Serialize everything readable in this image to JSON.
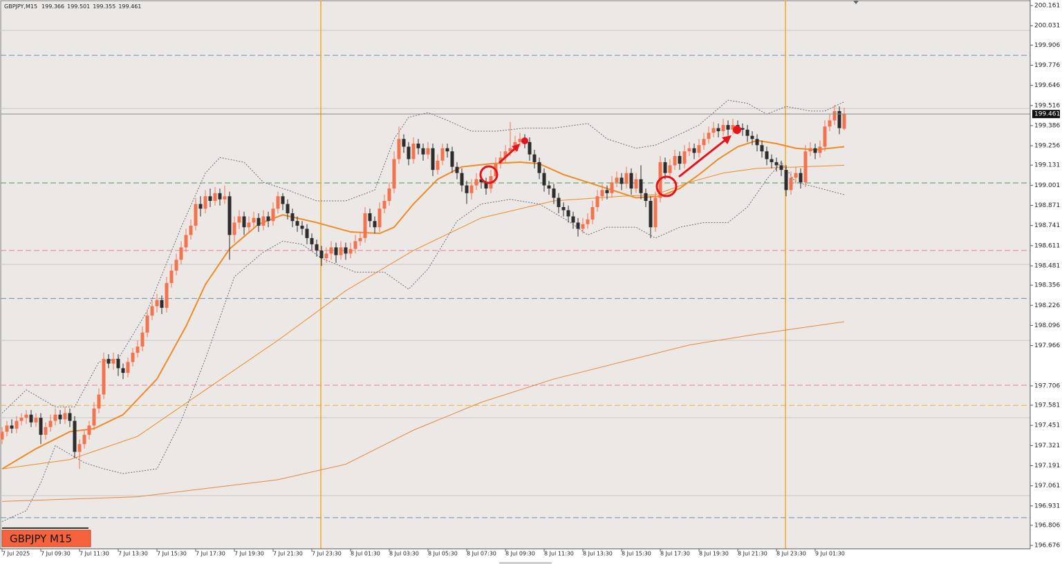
{
  "chart_data": {
    "type": "candlestick",
    "symbol": "GBPJPY,M15",
    "ohlc": [
      199.366,
      199.501,
      199.355,
      199.461
    ],
    "badge": "GBPJPY M15",
    "ylim": [
      196.654,
      200.197
    ],
    "yticks": [
      200.161,
      200.031,
      199.906,
      199.776,
      199.646,
      199.516,
      199.386,
      199.256,
      199.131,
      199.001,
      198.871,
      198.741,
      198.611,
      198.481,
      198.356,
      198.226,
      198.096,
      197.966,
      197.706,
      197.581,
      197.451,
      197.321,
      197.191,
      197.061,
      196.931,
      196.806,
      196.676
    ],
    "x_labels": [
      "7 Jul 2025",
      "7 Jul 09:30",
      "7 Jul 11:30",
      "7 Jul 13:30",
      "7 Jul 15:30",
      "7 Jul 17:30",
      "7 Jul 19:30",
      "7 Jul 21:30",
      "7 Jul 23:30",
      "8 Jul 01:30",
      "8 Jul 03:30",
      "8 Jul 05:30",
      "8 Jul 07:30",
      "8 Jul 09:30",
      "8 Jul 11:30",
      "8 Jul 13:30",
      "8 Jul 15:30",
      "8 Jul 17:30",
      "8 Jul 19:30",
      "8 Jul 21:30",
      "8 Jul 23:30",
      "9 Jul 01:30"
    ],
    "up_color": "#f4734f",
    "down_color": "#2d2d2d",
    "open": [
      197.36,
      197.41,
      197.45,
      197.43,
      197.48,
      197.5,
      197.52,
      197.47,
      197.5,
      197.39,
      197.44,
      197.48,
      197.52,
      197.49,
      197.53,
      197.48,
      197.28,
      197.33,
      197.39,
      197.45,
      197.56,
      197.65,
      197.88,
      197.85,
      197.88,
      197.82,
      197.79,
      197.86,
      197.92,
      197.96,
      198.05,
      198.16,
      198.22,
      198.26,
      198.21,
      198.37,
      198.45,
      198.52,
      198.6,
      198.68,
      198.74,
      198.88,
      198.85,
      198.93,
      198.9,
      198.95,
      198.91,
      198.93,
      198.68,
      198.76,
      198.8,
      198.73,
      198.76,
      198.79,
      198.74,
      198.8,
      198.77,
      198.85,
      198.93,
      198.88,
      198.82,
      198.77,
      198.74,
      198.72,
      198.66,
      198.62,
      198.58,
      198.53,
      198.56,
      198.6,
      198.55,
      198.6,
      198.56,
      198.59,
      198.64,
      198.66,
      198.82,
      198.77,
      198.73,
      198.85,
      198.9,
      198.98,
      199.17,
      199.3,
      199.25,
      199.17,
      199.27,
      199.24,
      199.2,
      199.24,
      199.1,
      199.16,
      199.24,
      199.22,
      199.12,
      199.08,
      199.0,
      198.95,
      199.0,
      199.04,
      199.02,
      198.98,
      199.06,
      199.14,
      199.18,
      199.22,
      199.24,
      199.28,
      199.3,
      199.28,
      199.2,
      199.15,
      199.08,
      199.0,
      198.98,
      198.92,
      198.86,
      198.84,
      198.8,
      198.76,
      198.72,
      198.75,
      198.78,
      198.86,
      198.93,
      198.97,
      198.95,
      199.02,
      199.05,
      199.01,
      199.08,
      198.98,
      199.04,
      198.95,
      198.9,
      198.73,
      198.92,
      199.15,
      199.08,
      199.13,
      199.19,
      199.14,
      199.22,
      199.24,
      199.21,
      199.26,
      199.3,
      199.34,
      199.37,
      199.35,
      199.39,
      199.36,
      199.39,
      199.37,
      199.36,
      199.32,
      199.3,
      199.26,
      199.22,
      199.17,
      199.15,
      199.13,
      199.1,
      198.97,
      199.05,
      199.08,
      199.02,
      199.22,
      199.24,
      199.21,
      199.25,
      199.38,
      199.42,
      199.48,
      199.366
    ],
    "high": [
      197.44,
      197.48,
      197.49,
      197.51,
      197.53,
      197.55,
      197.55,
      197.53,
      197.53,
      197.47,
      197.52,
      197.56,
      197.55,
      197.57,
      197.56,
      197.51,
      197.36,
      197.42,
      197.48,
      197.6,
      197.69,
      197.92,
      197.91,
      197.92,
      197.91,
      197.85,
      197.89,
      197.95,
      198.0,
      198.09,
      198.2,
      198.26,
      198.3,
      198.29,
      198.41,
      198.49,
      198.56,
      198.64,
      198.72,
      198.78,
      198.92,
      198.93,
      198.97,
      198.98,
      198.99,
      198.98,
      199.0,
      198.96,
      198.8,
      198.84,
      198.83,
      198.8,
      198.83,
      198.82,
      198.84,
      198.83,
      198.89,
      198.96,
      198.95,
      198.91,
      198.85,
      198.8,
      198.77,
      198.75,
      198.69,
      198.65,
      198.61,
      198.6,
      198.64,
      198.63,
      198.64,
      198.63,
      198.63,
      198.68,
      198.7,
      198.86,
      198.85,
      198.8,
      198.89,
      198.94,
      199.02,
      199.22,
      199.38,
      199.33,
      199.28,
      199.31,
      199.3,
      199.27,
      199.28,
      199.27,
      199.2,
      199.27,
      199.27,
      199.25,
      199.15,
      199.11,
      199.03,
      199.04,
      199.08,
      199.07,
      199.05,
      199.1,
      199.18,
      199.22,
      199.26,
      199.41,
      199.32,
      199.34,
      199.33,
      199.31,
      199.23,
      199.18,
      199.11,
      199.03,
      199.01,
      198.95,
      198.89,
      198.87,
      198.83,
      198.79,
      198.79,
      198.82,
      198.9,
      198.97,
      199.01,
      199.0,
      199.06,
      199.09,
      199.08,
      199.12,
      199.11,
      199.08,
      199.13,
      198.98,
      198.93,
      198.96,
      199.19,
      199.18,
      199.17,
      199.23,
      199.22,
      199.26,
      199.28,
      199.27,
      199.3,
      199.34,
      199.38,
      199.41,
      199.4,
      199.43,
      199.42,
      199.43,
      199.42,
      199.4,
      199.39,
      199.35,
      199.33,
      199.29,
      199.25,
      199.2,
      199.18,
      199.16,
      199.13,
      199.09,
      199.12,
      199.11,
      199.26,
      199.28,
      199.27,
      199.29,
      199.42,
      199.46,
      199.52,
      199.51,
      199.501
    ],
    "low": [
      197.33,
      197.38,
      197.4,
      197.4,
      197.45,
      197.46,
      197.44,
      197.44,
      197.33,
      197.36,
      197.41,
      197.45,
      197.46,
      197.46,
      197.44,
      197.24,
      197.17,
      197.3,
      197.36,
      197.42,
      197.53,
      197.62,
      197.82,
      197.81,
      197.77,
      197.75,
      197.76,
      197.83,
      197.89,
      197.93,
      198.02,
      198.13,
      198.18,
      198.17,
      198.18,
      198.34,
      198.42,
      198.49,
      198.57,
      198.65,
      198.71,
      198.8,
      198.82,
      198.86,
      198.87,
      198.87,
      198.88,
      198.52,
      198.63,
      198.72,
      198.68,
      198.69,
      198.72,
      198.7,
      198.71,
      198.73,
      198.74,
      198.82,
      198.84,
      198.78,
      198.73,
      198.7,
      198.68,
      198.62,
      198.58,
      198.54,
      198.48,
      198.5,
      198.52,
      198.5,
      198.52,
      198.52,
      198.53,
      198.56,
      198.61,
      198.63,
      198.73,
      198.69,
      198.7,
      198.82,
      198.87,
      198.95,
      199.14,
      199.21,
      199.13,
      199.14,
      199.2,
      199.16,
      199.17,
      199.06,
      199.07,
      199.13,
      199.18,
      199.08,
      199.04,
      198.96,
      198.88,
      198.91,
      198.97,
      198.98,
      198.94,
      198.95,
      199.03,
      199.11,
      199.15,
      199.19,
      199.21,
      199.25,
      199.24,
      199.16,
      199.11,
      199.04,
      198.96,
      198.94,
      198.88,
      198.82,
      198.8,
      198.76,
      198.72,
      198.67,
      198.69,
      198.72,
      198.75,
      198.83,
      198.9,
      198.91,
      198.92,
      198.99,
      198.97,
      198.98,
      198.94,
      198.95,
      198.91,
      198.86,
      198.66,
      198.7,
      198.89,
      199.04,
      199.05,
      199.1,
      199.1,
      199.11,
      199.19,
      199.17,
      199.18,
      199.23,
      199.27,
      199.31,
      199.31,
      199.32,
      199.32,
      199.33,
      199.33,
      199.32,
      199.28,
      199.26,
      199.22,
      199.18,
      199.13,
      199.11,
      199.09,
      199.06,
      198.93,
      198.94,
      199.01,
      198.98,
      198.99,
      199.19,
      199.17,
      199.18,
      199.22,
      199.35,
      199.39,
      199.33,
      199.355
    ],
    "close": [
      197.41,
      197.45,
      197.43,
      197.48,
      197.5,
      197.52,
      197.47,
      197.5,
      197.39,
      197.44,
      197.48,
      197.52,
      197.49,
      197.53,
      197.48,
      197.28,
      197.33,
      197.39,
      197.45,
      197.56,
      197.65,
      197.88,
      197.85,
      197.88,
      197.82,
      197.79,
      197.86,
      197.92,
      197.96,
      198.05,
      198.16,
      198.22,
      198.26,
      198.21,
      198.37,
      198.45,
      198.52,
      198.6,
      198.68,
      198.74,
      198.88,
      198.85,
      198.93,
      198.9,
      198.95,
      198.91,
      198.93,
      198.68,
      198.76,
      198.8,
      198.73,
      198.76,
      198.79,
      198.74,
      198.8,
      198.77,
      198.85,
      198.93,
      198.88,
      198.82,
      198.77,
      198.74,
      198.72,
      198.66,
      198.62,
      198.58,
      198.53,
      198.56,
      198.6,
      198.55,
      198.6,
      198.56,
      198.59,
      198.64,
      198.66,
      198.82,
      198.77,
      198.73,
      198.85,
      198.9,
      198.98,
      199.17,
      199.3,
      199.25,
      199.17,
      199.27,
      199.24,
      199.2,
      199.24,
      199.1,
      199.16,
      199.24,
      199.22,
      199.12,
      199.08,
      199.0,
      198.95,
      199.0,
      199.04,
      199.02,
      198.98,
      199.06,
      199.14,
      199.18,
      199.22,
      199.24,
      199.28,
      199.3,
      199.28,
      199.2,
      199.15,
      199.08,
      199.0,
      198.98,
      198.92,
      198.86,
      198.84,
      198.8,
      198.76,
      198.72,
      198.75,
      198.78,
      198.86,
      198.93,
      198.97,
      198.95,
      199.02,
      199.05,
      199.01,
      199.08,
      198.98,
      199.04,
      198.95,
      198.9,
      198.73,
      198.92,
      199.15,
      199.08,
      199.13,
      199.19,
      199.14,
      199.22,
      199.24,
      199.21,
      199.26,
      199.3,
      199.34,
      199.37,
      199.35,
      199.39,
      199.36,
      199.39,
      199.37,
      199.36,
      199.32,
      199.3,
      199.26,
      199.22,
      199.17,
      199.15,
      199.13,
      199.1,
      198.97,
      199.05,
      199.08,
      199.02,
      199.22,
      199.24,
      199.21,
      199.25,
      199.38,
      199.42,
      199.48,
      199.37,
      199.461
    ],
    "lines": [
      {
        "color": "#f08a24",
        "style": "thick",
        "x": [
          0,
          7,
          14,
          19,
          25,
          32,
          38,
          42,
          47,
          53,
          58,
          65,
          72,
          78,
          81,
          85,
          90,
          95,
          101,
          107,
          111,
          116,
          121,
          126,
          131,
          136,
          140,
          144,
          148,
          152,
          156,
          160,
          164,
          168,
          174
        ],
        "values": [
          197.17,
          197.3,
          197.41,
          197.43,
          197.52,
          197.75,
          198.09,
          198.36,
          198.59,
          198.75,
          198.81,
          198.76,
          198.7,
          198.69,
          198.73,
          198.88,
          199.04,
          199.12,
          199.14,
          199.15,
          199.14,
          199.07,
          199.02,
          198.97,
          198.92,
          198.93,
          198.98,
          199.07,
          199.17,
          199.25,
          199.29,
          199.27,
          199.24,
          199.23,
          199.25
        ]
      },
      {
        "color": "#f08a24",
        "style": "thin",
        "x": [
          0,
          14,
          28,
          42,
          57,
          71,
          85,
          99,
          114,
          128,
          135,
          142,
          149,
          156,
          174
        ],
        "values": [
          197.17,
          197.23,
          197.38,
          197.68,
          198.0,
          198.32,
          198.58,
          198.79,
          198.9,
          198.93,
          198.94,
          199.02,
          199.08,
          199.11,
          199.13
        ]
      },
      {
        "color": "#e8883a",
        "style": "thin",
        "x": [
          0,
          28,
          57,
          71,
          85,
          99,
          114,
          128,
          142,
          156,
          174
        ],
        "values": [
          196.96,
          196.99,
          197.1,
          197.2,
          197.42,
          197.6,
          197.75,
          197.86,
          197.97,
          198.04,
          198.12
        ]
      },
      {
        "color": "#6b6b7a",
        "style": "dotted",
        "x": [
          0,
          5,
          11,
          15,
          20,
          24,
          30,
          37,
          42,
          45,
          50,
          54,
          59,
          65,
          71,
          77,
          81,
          84,
          88,
          92,
          97,
          102,
          108,
          114,
          121,
          125,
          131,
          135,
          140,
          144,
          150,
          154,
          158,
          162,
          167,
          170,
          174
        ],
        "values": [
          197.53,
          197.68,
          197.57,
          197.57,
          197.86,
          197.88,
          198.19,
          198.73,
          199.08,
          199.18,
          199.15,
          199.02,
          198.97,
          198.9,
          198.9,
          198.97,
          199.3,
          199.44,
          199.47,
          199.42,
          199.35,
          199.35,
          199.37,
          199.37,
          199.4,
          199.3,
          199.24,
          199.26,
          199.33,
          199.39,
          199.55,
          199.53,
          199.46,
          199.51,
          199.48,
          199.48,
          199.54
        ]
      },
      {
        "color": "#6b6b7a",
        "style": "dotted",
        "x": [
          0,
          5,
          8,
          11,
          17,
          21,
          25,
          32,
          37,
          42,
          48,
          54,
          58,
          62,
          66,
          73,
          79,
          84,
          88,
          94,
          99,
          105,
          111,
          117,
          121,
          125,
          131,
          135,
          140,
          145,
          150,
          154,
          158,
          161,
          164,
          168,
          174
        ],
        "values": [
          196.83,
          196.9,
          197.08,
          197.32,
          197.21,
          197.17,
          197.14,
          197.17,
          197.48,
          197.88,
          198.41,
          198.57,
          198.64,
          198.62,
          198.53,
          198.44,
          198.44,
          198.33,
          198.46,
          198.77,
          198.88,
          198.91,
          198.88,
          198.77,
          198.68,
          198.73,
          198.73,
          198.66,
          198.73,
          198.76,
          198.76,
          198.86,
          199.04,
          199.15,
          199.02,
          198.99,
          198.94
        ]
      }
    ],
    "levels": [
      {
        "value": 200.001,
        "color": "#c8c8c8",
        "dash": false
      },
      {
        "value": 199.497,
        "color": "#c8c8c8",
        "dash": false
      },
      {
        "value": 198.49,
        "color": "#c8c8c8",
        "dash": false
      },
      {
        "value": 198.0,
        "color": "#c8c8c8",
        "dash": false
      },
      {
        "value": 197.5,
        "color": "#c8c8c8",
        "dash": false
      },
      {
        "value": 196.997,
        "color": "#c8c8c8",
        "dash": false
      },
      {
        "value": 199.84,
        "color": "#6a8fb8",
        "dash": true
      },
      {
        "value": 199.016,
        "color": "#4f9a5a",
        "dash": true
      },
      {
        "value": 198.58,
        "color": "#e87ca0",
        "dash": true
      },
      {
        "value": 198.27,
        "color": "#6a8fb8",
        "dash": true
      },
      {
        "value": 197.71,
        "color": "#e87ca0",
        "dash": true
      },
      {
        "value": 197.58,
        "color": "#e8b040",
        "dash": true
      },
      {
        "value": 196.855,
        "color": "#6a8fb8",
        "dash": true
      }
    ]
  }
}
